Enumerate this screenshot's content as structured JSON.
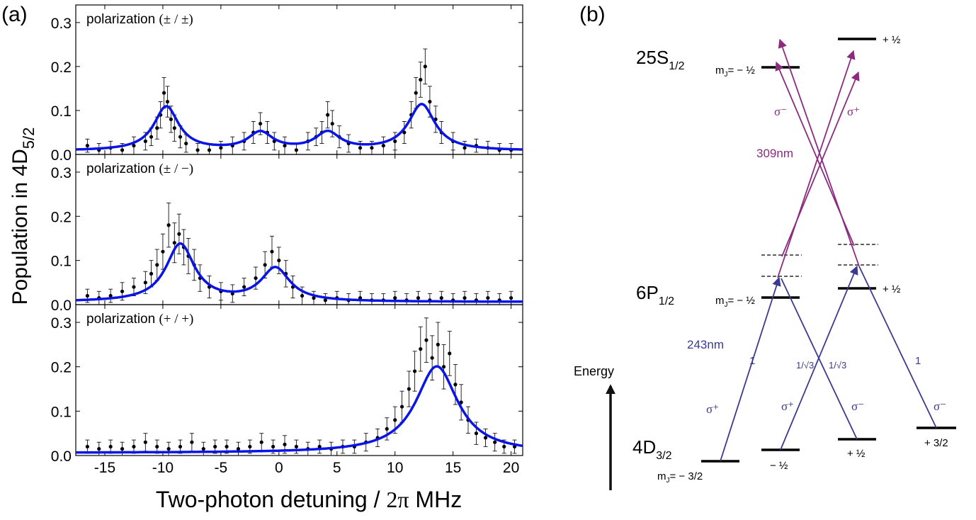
{
  "panel_a": {
    "label": "(a)",
    "ylabel_main": "Population in 4D",
    "ylabel_sub": "5/2",
    "xlabel_main": "Two-photon detuning / ",
    "xlabel_math": "2π",
    "xlabel_unit": " MHz",
    "xticks": [
      "-15",
      "-10",
      "-5",
      "0",
      "5",
      "10",
      "15",
      "20"
    ],
    "yticks": [
      "0.0",
      "0.1",
      "0.2",
      "0.3"
    ]
  },
  "chart_data": [
    {
      "type": "scatter",
      "title": "polarization (± / ±)",
      "title_prefix": "polarization ",
      "title_math": "(± / ±)",
      "xlim": [
        -17.5,
        21
      ],
      "ylim": [
        0,
        0.34
      ],
      "fit_color": "#0a14e6",
      "fit": {
        "peaks": [
          {
            "x0": -9.7,
            "amp": 0.1,
            "gamma": 1.3
          },
          {
            "x0": -1.6,
            "amp": 0.04,
            "gamma": 1.3
          },
          {
            "x0": 4.2,
            "amp": 0.04,
            "gamma": 1.3
          },
          {
            "x0": 12.3,
            "amp": 0.105,
            "gamma": 1.4
          }
        ],
        "offset": 0.008
      },
      "points": [
        [
          -16.5,
          0.02,
          0.015
        ],
        [
          -15.5,
          0.01,
          0.015
        ],
        [
          -14.5,
          0.015,
          0.015
        ],
        [
          -13.5,
          0.01,
          0.015
        ],
        [
          -12.5,
          0.02,
          0.02
        ],
        [
          -11.5,
          0.03,
          0.02
        ],
        [
          -11,
          0.04,
          0.02
        ],
        [
          -10.5,
          0.06,
          0.025
        ],
        [
          -10.2,
          0.09,
          0.03
        ],
        [
          -9.9,
          0.14,
          0.035
        ],
        [
          -9.6,
          0.12,
          0.035
        ],
        [
          -9.3,
          0.08,
          0.03
        ],
        [
          -9,
          0.06,
          0.03
        ],
        [
          -8.5,
          0.04,
          0.025
        ],
        [
          -8,
          0.025,
          0.02
        ],
        [
          -7,
          0.01,
          0.015
        ],
        [
          -6,
          0.01,
          0.015
        ],
        [
          -5,
          0.015,
          0.015
        ],
        [
          -4,
          0.02,
          0.02
        ],
        [
          -3,
          0.03,
          0.02
        ],
        [
          -2.2,
          0.05,
          0.025
        ],
        [
          -1.6,
          0.07,
          0.025
        ],
        [
          -1,
          0.05,
          0.025
        ],
        [
          -0.4,
          0.03,
          0.02
        ],
        [
          0.5,
          0.02,
          0.02
        ],
        [
          1.5,
          0.01,
          0.015
        ],
        [
          2.5,
          0.03,
          0.02
        ],
        [
          3.2,
          0.04,
          0.02
        ],
        [
          3.7,
          0.05,
          0.025
        ],
        [
          4.2,
          0.09,
          0.03
        ],
        [
          4.6,
          0.07,
          0.03
        ],
        [
          5.2,
          0.04,
          0.025
        ],
        [
          6,
          0.025,
          0.02
        ],
        [
          7,
          0.015,
          0.015
        ],
        [
          8,
          0.015,
          0.015
        ],
        [
          9,
          0.02,
          0.02
        ],
        [
          10,
          0.03,
          0.02
        ],
        [
          10.8,
          0.05,
          0.025
        ],
        [
          11.4,
          0.09,
          0.03
        ],
        [
          11.8,
          0.14,
          0.035
        ],
        [
          12.2,
          0.17,
          0.04
        ],
        [
          12.6,
          0.2,
          0.04
        ],
        [
          13,
          0.12,
          0.035
        ],
        [
          13.5,
          0.08,
          0.03
        ],
        [
          14,
          0.05,
          0.025
        ],
        [
          15,
          0.03,
          0.02
        ],
        [
          16,
          0.015,
          0.015
        ],
        [
          17,
          0.02,
          0.015
        ],
        [
          18,
          0.015,
          0.015
        ],
        [
          19,
          0.01,
          0.015
        ],
        [
          20,
          0.01,
          0.015
        ]
      ]
    },
    {
      "type": "scatter",
      "title": "polarization (± / −)",
      "title_prefix": "polarization ",
      "title_math": "(± / −)",
      "xlim": [
        -17.5,
        21
      ],
      "ylim": [
        0,
        0.34
      ],
      "fit_color": "#0a14e6",
      "fit": {
        "peaks": [
          {
            "x0": -8.5,
            "amp": 0.13,
            "gamma": 1.5
          },
          {
            "x0": -0.3,
            "amp": 0.075,
            "gamma": 1.5
          }
        ],
        "offset": 0.006
      },
      "points": [
        [
          -16.5,
          0.02,
          0.015
        ],
        [
          -15.5,
          0.015,
          0.015
        ],
        [
          -14.5,
          0.02,
          0.015
        ],
        [
          -13.5,
          0.03,
          0.02
        ],
        [
          -12.5,
          0.04,
          0.02
        ],
        [
          -11.5,
          0.05,
          0.025
        ],
        [
          -11,
          0.07,
          0.03
        ],
        [
          -10.5,
          0.09,
          0.035
        ],
        [
          -10,
          0.12,
          0.04
        ],
        [
          -9.5,
          0.18,
          0.05
        ],
        [
          -9,
          0.14,
          0.045
        ],
        [
          -8.6,
          0.16,
          0.045
        ],
        [
          -8.2,
          0.13,
          0.04
        ],
        [
          -7.8,
          0.11,
          0.04
        ],
        [
          -7.3,
          0.09,
          0.035
        ],
        [
          -6.8,
          0.06,
          0.03
        ],
        [
          -6,
          0.04,
          0.025
        ],
        [
          -5,
          0.03,
          0.02
        ],
        [
          -4,
          0.025,
          0.02
        ],
        [
          -3,
          0.04,
          0.02
        ],
        [
          -2,
          0.06,
          0.025
        ],
        [
          -1.2,
          0.09,
          0.03
        ],
        [
          -0.6,
          0.12,
          0.035
        ],
        [
          0,
          0.1,
          0.03
        ],
        [
          0.6,
          0.07,
          0.03
        ],
        [
          1.2,
          0.04,
          0.025
        ],
        [
          2,
          0.02,
          0.02
        ],
        [
          3,
          0.015,
          0.015
        ],
        [
          4,
          0.01,
          0.015
        ],
        [
          5,
          0.015,
          0.015
        ],
        [
          6,
          0.01,
          0.015
        ],
        [
          7,
          0.015,
          0.015
        ],
        [
          8,
          0.01,
          0.015
        ],
        [
          9,
          0.01,
          0.015
        ],
        [
          10,
          0.015,
          0.015
        ],
        [
          11,
          0.01,
          0.015
        ],
        [
          12,
          0.015,
          0.015
        ],
        [
          13,
          0.01,
          0.015
        ],
        [
          14,
          0.015,
          0.015
        ],
        [
          15,
          0.01,
          0.015
        ],
        [
          16,
          0.015,
          0.015
        ],
        [
          17,
          0.01,
          0.015
        ],
        [
          18,
          0.015,
          0.015
        ],
        [
          19,
          0.01,
          0.015
        ],
        [
          20,
          0.015,
          0.015
        ]
      ]
    },
    {
      "type": "scatter",
      "title": "polarization (+ / +)",
      "title_prefix": "polarization ",
      "title_math": "(+ / +)",
      "xlim": [
        -17.5,
        21
      ],
      "ylim": [
        0,
        0.34
      ],
      "fit_color": "#0a14e6",
      "fit": {
        "peaks": [
          {
            "x0": 13.6,
            "amp": 0.195,
            "gamma": 2.2
          }
        ],
        "offset": 0.006
      },
      "points": [
        [
          -16.5,
          0.02,
          0.015
        ],
        [
          -15.5,
          0.015,
          0.015
        ],
        [
          -14.5,
          0.02,
          0.015
        ],
        [
          -13.5,
          0.015,
          0.015
        ],
        [
          -12.5,
          0.02,
          0.015
        ],
        [
          -11.5,
          0.03,
          0.02
        ],
        [
          -10.5,
          0.02,
          0.015
        ],
        [
          -9.5,
          0.015,
          0.015
        ],
        [
          -8.5,
          0.02,
          0.015
        ],
        [
          -7.5,
          0.03,
          0.02
        ],
        [
          -6.5,
          0.015,
          0.015
        ],
        [
          -5.5,
          0.02,
          0.015
        ],
        [
          -4.5,
          0.02,
          0.015
        ],
        [
          -3.5,
          0.015,
          0.015
        ],
        [
          -2.5,
          0.02,
          0.015
        ],
        [
          -1.5,
          0.03,
          0.02
        ],
        [
          -0.5,
          0.02,
          0.015
        ],
        [
          0.5,
          0.025,
          0.02
        ],
        [
          1.5,
          0.02,
          0.015
        ],
        [
          2.5,
          0.015,
          0.015
        ],
        [
          3.5,
          0.02,
          0.015
        ],
        [
          4.5,
          0.015,
          0.015
        ],
        [
          5.5,
          0.02,
          0.015
        ],
        [
          6.5,
          0.02,
          0.015
        ],
        [
          7.5,
          0.03,
          0.02
        ],
        [
          8.5,
          0.04,
          0.02
        ],
        [
          9.3,
          0.06,
          0.025
        ],
        [
          10,
          0.08,
          0.03
        ],
        [
          10.6,
          0.11,
          0.035
        ],
        [
          11.2,
          0.15,
          0.04
        ],
        [
          11.7,
          0.19,
          0.045
        ],
        [
          12.2,
          0.24,
          0.05
        ],
        [
          12.7,
          0.26,
          0.05
        ],
        [
          13.2,
          0.22,
          0.05
        ],
        [
          13.7,
          0.25,
          0.05
        ],
        [
          14.2,
          0.2,
          0.05
        ],
        [
          14.7,
          0.23,
          0.05
        ],
        [
          15.2,
          0.16,
          0.045
        ],
        [
          15.7,
          0.12,
          0.04
        ],
        [
          16.3,
          0.08,
          0.03
        ],
        [
          17,
          0.05,
          0.025
        ],
        [
          17.8,
          0.04,
          0.02
        ],
        [
          18.6,
          0.03,
          0.02
        ],
        [
          19.4,
          0.02,
          0.015
        ],
        [
          20.3,
          0.02,
          0.015
        ]
      ]
    }
  ],
  "panel_b": {
    "label": "(b)",
    "levels": {
      "s_main": "25S",
      "s_sub": "1/2",
      "p_main": "6P",
      "p_sub": "1/2",
      "d_main": "4D",
      "d_sub": "3/2"
    },
    "mj_labels": {
      "mj_prefix": "m",
      "mj_sub": "J",
      "s_neg": "= − ½",
      "s_pos": "+ ½",
      "p_neg": "= − ½",
      "p_pos": "+ ½",
      "d_m32": "= − 3/2",
      "d_m12": "− ½",
      "d_p12": "+ ½",
      "d_p32": "+ 3/2"
    },
    "wavelengths": {
      "uv_low": "243nm",
      "uv_high": "309nm"
    },
    "polarizations": {
      "sigma_plus": "σ⁺",
      "sigma_minus": "σ⁻"
    },
    "strengths": {
      "one": "1",
      "one_over_root3": "1/√3"
    },
    "energy_label": "Energy",
    "colors": {
      "lower": "#3b3a8f",
      "upper": "#8b2a7f"
    }
  }
}
